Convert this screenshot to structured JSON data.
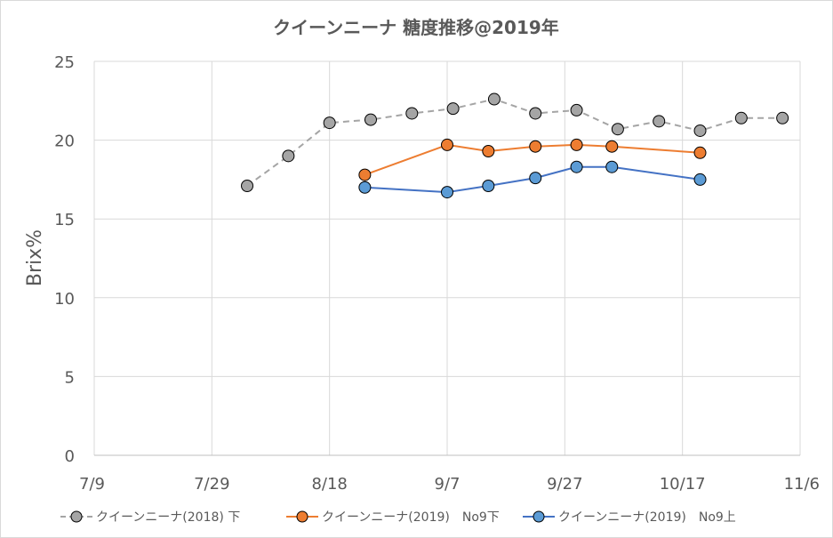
{
  "chart_data": {
    "type": "line",
    "title": "クイーンニーナ 糖度推移@2019年",
    "ylabel": "Brix%",
    "xlabel": "",
    "ylim": [
      0,
      25
    ],
    "yticks": [
      0,
      5,
      10,
      15,
      20,
      25
    ],
    "xlim_days_from_7_9": [
      0,
      120
    ],
    "xticks": [
      {
        "label": "7/9",
        "day": 0
      },
      {
        "label": "7/29",
        "day": 20
      },
      {
        "label": "8/18",
        "day": 40
      },
      {
        "label": "9/7",
        "day": 60
      },
      {
        "label": "9/27",
        "day": 80
      },
      {
        "label": "10/17",
        "day": 100
      },
      {
        "label": "11/6",
        "day": 120
      }
    ],
    "grid": true,
    "legend_position": "bottom",
    "series": [
      {
        "name": "クイーンニーナ(2018) 下",
        "color": "#a5a5a5",
        "line_style": "dashed",
        "marker_color": "#a5a5a5",
        "points": [
          {
            "day": 26,
            "value": 17.1
          },
          {
            "day": 33,
            "value": 19.0
          },
          {
            "day": 40,
            "value": 21.1
          },
          {
            "day": 47,
            "value": 21.3
          },
          {
            "day": 54,
            "value": 21.7
          },
          {
            "day": 61,
            "value": 22.0
          },
          {
            "day": 68,
            "value": 22.6
          },
          {
            "day": 75,
            "value": 21.7
          },
          {
            "day": 82,
            "value": 21.9
          },
          {
            "day": 89,
            "value": 20.7
          },
          {
            "day": 96,
            "value": 21.2
          },
          {
            "day": 103,
            "value": 20.6
          },
          {
            "day": 110,
            "value": 21.4
          },
          {
            "day": 117,
            "value": 21.4
          }
        ]
      },
      {
        "name": "クイーンニーナ(2019)　No9下",
        "color": "#ed7d31",
        "line_style": "solid",
        "marker_color": "#ed7d31",
        "points": [
          {
            "day": 46,
            "value": 17.8
          },
          {
            "day": 60,
            "value": 19.7
          },
          {
            "day": 67,
            "value": 19.3
          },
          {
            "day": 75,
            "value": 19.6
          },
          {
            "day": 82,
            "value": 19.7
          },
          {
            "day": 88,
            "value": 19.6
          },
          {
            "day": 103,
            "value": 19.2
          }
        ]
      },
      {
        "name": "クイーンニーナ(2019)　No9上",
        "color": "#4472c4",
        "line_style": "solid",
        "marker_color": "#5b9bd5",
        "points": [
          {
            "day": 46,
            "value": 17.0
          },
          {
            "day": 60,
            "value": 16.7
          },
          {
            "day": 67,
            "value": 17.1
          },
          {
            "day": 75,
            "value": 17.6
          },
          {
            "day": 82,
            "value": 18.3
          },
          {
            "day": 88,
            "value": 18.3
          },
          {
            "day": 103,
            "value": 17.5
          }
        ]
      }
    ]
  }
}
